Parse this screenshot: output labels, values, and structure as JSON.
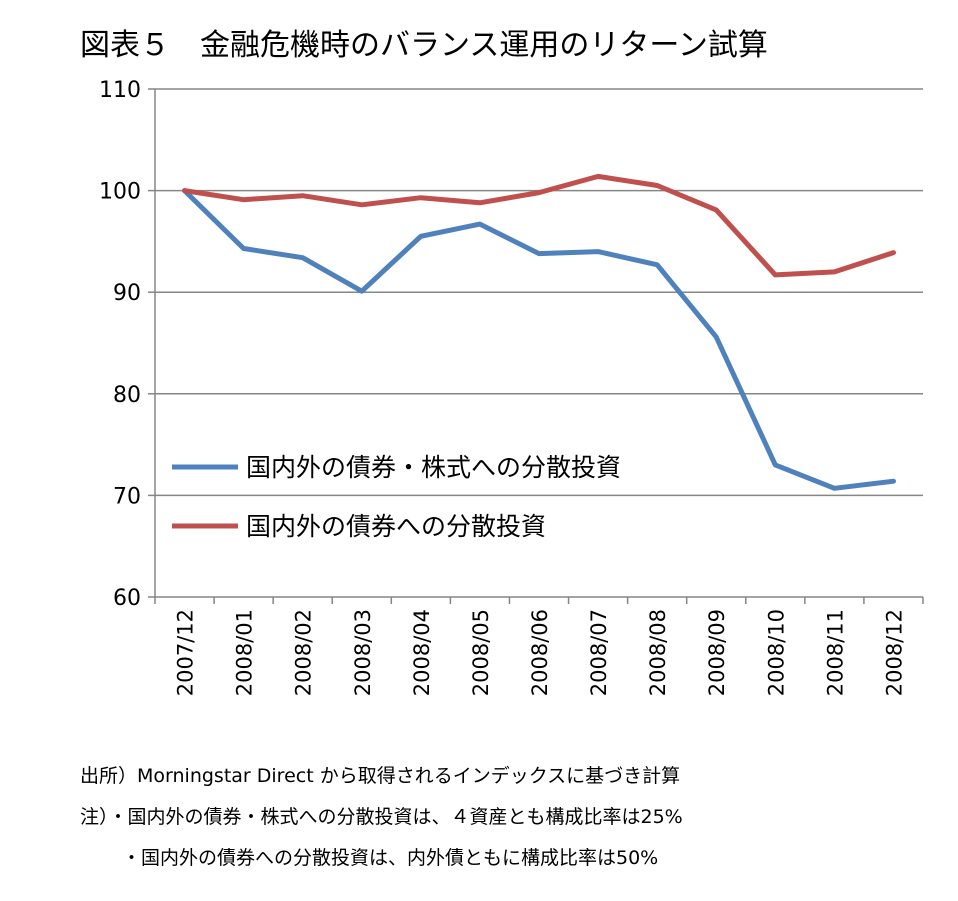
{
  "chart_data": {
    "type": "line",
    "title": "図表５　金融危機時のバランス運用のリターン試算",
    "xlabel": "",
    "ylabel": "",
    "ylim": [
      60,
      110
    ],
    "yticks": [
      60,
      70,
      80,
      90,
      100,
      110
    ],
    "grid": true,
    "legend_position": "center-left",
    "categories": [
      "2007/12",
      "2008/01",
      "2008/02",
      "2008/03",
      "2008/04",
      "2008/05",
      "2008/06",
      "2008/07",
      "2008/08",
      "2008/09",
      "2008/10",
      "2008/11",
      "2008/12"
    ],
    "series": [
      {
        "name": "国内外の債券・株式への分散投資",
        "color": "#4f81bd",
        "values": [
          100,
          94.3,
          93.4,
          90.1,
          95.5,
          96.7,
          93.8,
          94.0,
          92.7,
          85.6,
          73.0,
          70.7,
          71.4
        ]
      },
      {
        "name": "国内外の債券への分散投資",
        "color": "#c0504d",
        "values": [
          100,
          99.1,
          99.5,
          98.6,
          99.3,
          98.8,
          99.8,
          101.4,
          100.5,
          98.1,
          91.7,
          92.0,
          93.9
        ]
      }
    ]
  },
  "notes": {
    "source": "出所）Morningstar Direct から取得されるインデックスに基づき計算",
    "note1": "注）・国内外の債券・株式への分散投資は、４資産とも構成比率は25%",
    "note2": "・国内外の債券への分散投資は、内外債ともに構成比率は50%"
  }
}
